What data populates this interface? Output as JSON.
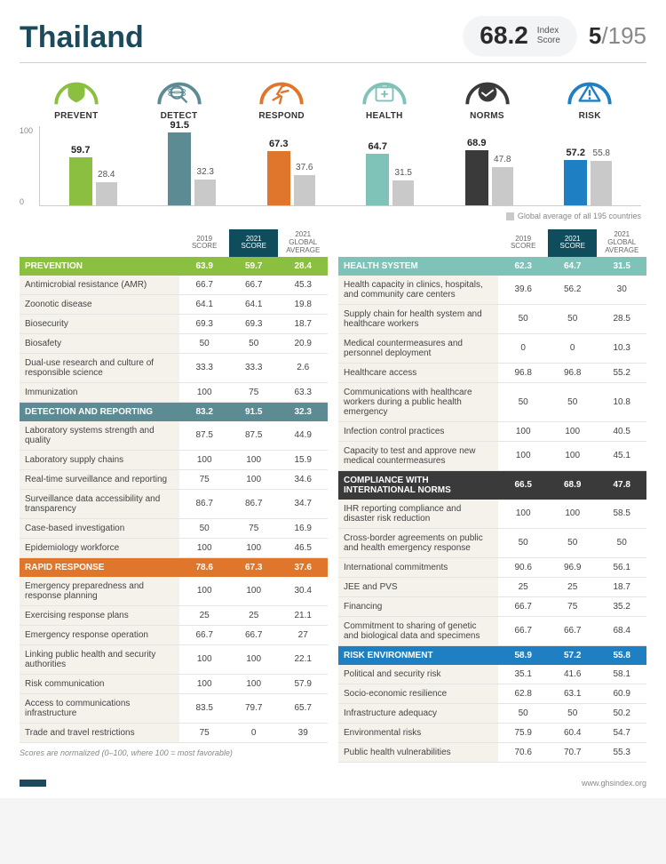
{
  "header": {
    "country": "Thailand",
    "index_score": "68.2",
    "index_label_top": "Index",
    "index_label_bottom": "Score",
    "rank": "5",
    "rank_of": "/195"
  },
  "chart": {
    "ymax": 100,
    "ytick_top": "100",
    "ytick_bottom": "0",
    "legend": "Global average of all 195 countries",
    "avg_color": "#c9c9c9",
    "categories": [
      {
        "label": "PREVENT",
        "val": 59.7,
        "avg": 28.4,
        "color": "#8bbf3f",
        "icon": "shield"
      },
      {
        "label": "DETECT",
        "val": 91.5,
        "avg": 32.3,
        "color": "#5d8b94",
        "icon": "search"
      },
      {
        "label": "RESPOND",
        "val": 67.3,
        "avg": 37.6,
        "color": "#e0762b",
        "icon": "run"
      },
      {
        "label": "HEALTH",
        "val": 64.7,
        "avg": 31.5,
        "color": "#7fc2b8",
        "icon": "kit"
      },
      {
        "label": "NORMS",
        "val": 68.9,
        "avg": 47.8,
        "color": "#3a3a3a",
        "icon": "handshake"
      },
      {
        "label": "RISK",
        "val": 57.2,
        "avg": 55.8,
        "color": "#1e7fc2",
        "icon": "warn"
      }
    ]
  },
  "table_headers": {
    "c1": "2019\nSCORE",
    "c2": "2021\nSCORE",
    "c3": "2021\nGLOBAL\nAVERAGE"
  },
  "left_sections": [
    {
      "title": "PREVENTION",
      "color": "#8bbf3f",
      "vals": [
        "63.9",
        "59.7",
        "28.4"
      ],
      "rows": [
        {
          "m": "Antimicrobial resistance (AMR)",
          "v": [
            "66.7",
            "66.7",
            "45.3"
          ]
        },
        {
          "m": "Zoonotic disease",
          "v": [
            "64.1",
            "64.1",
            "19.8"
          ]
        },
        {
          "m": "Biosecurity",
          "v": [
            "69.3",
            "69.3",
            "18.7"
          ]
        },
        {
          "m": "Biosafety",
          "v": [
            "50",
            "50",
            "20.9"
          ]
        },
        {
          "m": "Dual-use research and culture of responsible science",
          "v": [
            "33.3",
            "33.3",
            "2.6"
          ]
        },
        {
          "m": "Immunization",
          "v": [
            "100",
            "75",
            "63.3"
          ]
        }
      ]
    },
    {
      "title": "DETECTION AND REPORTING",
      "color": "#5d8b94",
      "vals": [
        "83.2",
        "91.5",
        "32.3"
      ],
      "rows": [
        {
          "m": "Laboratory systems strength and quality",
          "v": [
            "87.5",
            "87.5",
            "44.9"
          ]
        },
        {
          "m": "Laboratory supply chains",
          "v": [
            "100",
            "100",
            "15.9"
          ]
        },
        {
          "m": "Real-time surveillance and reporting",
          "v": [
            "75",
            "100",
            "34.6"
          ]
        },
        {
          "m": "Surveillance data accessibility and transparency",
          "v": [
            "86.7",
            "86.7",
            "34.7"
          ]
        },
        {
          "m": "Case-based investigation",
          "v": [
            "50",
            "75",
            "16.9"
          ]
        },
        {
          "m": "Epidemiology workforce",
          "v": [
            "100",
            "100",
            "46.5"
          ]
        }
      ]
    },
    {
      "title": "RAPID RESPONSE",
      "color": "#e0762b",
      "vals": [
        "78.6",
        "67.3",
        "37.6"
      ],
      "rows": [
        {
          "m": "Emergency preparedness and response planning",
          "v": [
            "100",
            "100",
            "30.4"
          ]
        },
        {
          "m": "Exercising response plans",
          "v": [
            "25",
            "25",
            "21.1"
          ]
        },
        {
          "m": "Emergency response operation",
          "v": [
            "66.7",
            "66.7",
            "27"
          ]
        },
        {
          "m": "Linking public health and security authorities",
          "v": [
            "100",
            "100",
            "22.1"
          ]
        },
        {
          "m": "Risk communication",
          "v": [
            "100",
            "100",
            "57.9"
          ]
        },
        {
          "m": "Access to communications infrastructure",
          "v": [
            "83.5",
            "79.7",
            "65.7"
          ]
        },
        {
          "m": "Trade and travel restrictions",
          "v": [
            "75",
            "0",
            "39"
          ]
        }
      ]
    }
  ],
  "right_sections": [
    {
      "title": "HEALTH SYSTEM",
      "color": "#7fc2b8",
      "vals": [
        "62.3",
        "64.7",
        "31.5"
      ],
      "rows": [
        {
          "m": "Health capacity in clinics, hospitals, and community care centers",
          "v": [
            "39.6",
            "56.2",
            "30"
          ]
        },
        {
          "m": "Supply chain for health system and healthcare workers",
          "v": [
            "50",
            "50",
            "28.5"
          ]
        },
        {
          "m": "Medical countermeasures and personnel deployment",
          "v": [
            "0",
            "0",
            "10.3"
          ]
        },
        {
          "m": "Healthcare access",
          "v": [
            "96.8",
            "96.8",
            "55.2"
          ]
        },
        {
          "m": "Communications with healthcare workers during a public health emergency",
          "v": [
            "50",
            "50",
            "10.8"
          ]
        },
        {
          "m": "Infection control practices",
          "v": [
            "100",
            "100",
            "40.5"
          ]
        },
        {
          "m": "Capacity to test and approve new medical countermeasures",
          "v": [
            "100",
            "100",
            "45.1"
          ]
        }
      ]
    },
    {
      "title": "COMPLIANCE WITH INTERNATIONAL NORMS",
      "color": "#3a3a3a",
      "vals": [
        "66.5",
        "68.9",
        "47.8"
      ],
      "rows": [
        {
          "m": "IHR reporting compliance and disaster risk reduction",
          "v": [
            "100",
            "100",
            "58.5"
          ]
        },
        {
          "m": "Cross-border agreements on public and health emergency response",
          "v": [
            "50",
            "50",
            "50"
          ]
        },
        {
          "m": "International commitments",
          "v": [
            "90.6",
            "96.9",
            "56.1"
          ]
        },
        {
          "m": "JEE and PVS",
          "v": [
            "25",
            "25",
            "18.7"
          ]
        },
        {
          "m": "Financing",
          "v": [
            "66.7",
            "75",
            "35.2"
          ]
        },
        {
          "m": "Commitment to sharing of genetic and biological data and specimens",
          "v": [
            "66.7",
            "66.7",
            "68.4"
          ]
        }
      ]
    },
    {
      "title": "RISK ENVIRONMENT",
      "color": "#1e7fc2",
      "vals": [
        "58.9",
        "57.2",
        "55.8"
      ],
      "rows": [
        {
          "m": "Political and security risk",
          "v": [
            "35.1",
            "41.6",
            "58.1"
          ]
        },
        {
          "m": "Socio-economic resilience",
          "v": [
            "62.8",
            "63.1",
            "60.9"
          ]
        },
        {
          "m": "Infrastructure adequacy",
          "v": [
            "50",
            "50",
            "50.2"
          ]
        },
        {
          "m": "Environmental risks",
          "v": [
            "75.9",
            "60.4",
            "54.7"
          ]
        },
        {
          "m": "Public health vulnerabilities",
          "v": [
            "70.6",
            "70.7",
            "55.3"
          ]
        }
      ]
    }
  ],
  "footnote": "Scores are normalized (0–100, where 100 = most favorable)",
  "footer_url": "www.ghsindex.org"
}
